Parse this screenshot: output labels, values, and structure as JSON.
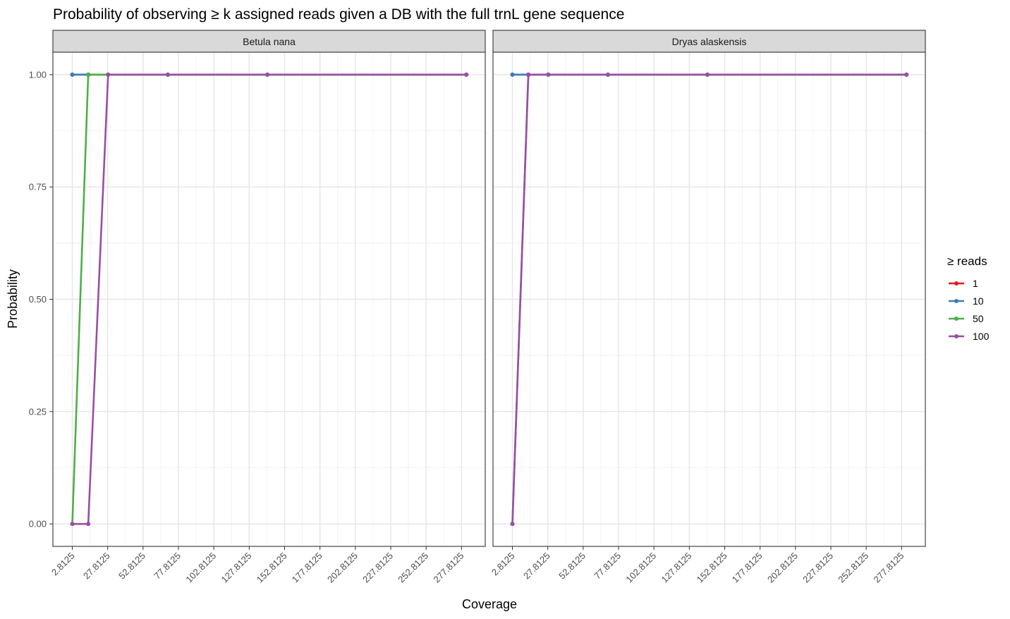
{
  "chart_data": {
    "type": "line",
    "title": "Probability of observing ≥ k assigned reads given a DB with the full trnL gene sequence",
    "xlabel": "Coverage",
    "ylabel": "Probability",
    "x_ticks": [
      "2.8125",
      "27.8125",
      "52.8125",
      "77.8125",
      "102.8125",
      "127.8125",
      "152.8125",
      "177.8125",
      "202.8125",
      "227.8125",
      "252.8125",
      "277.8125"
    ],
    "x_tick_values": [
      2.8125,
      27.8125,
      52.8125,
      77.8125,
      102.8125,
      127.8125,
      152.8125,
      177.8125,
      202.8125,
      227.8125,
      252.8125,
      277.8125
    ],
    "xlim": [
      -10.9,
      294.6
    ],
    "y_ticks": [
      "0.00",
      "0.25",
      "0.50",
      "0.75",
      "1.00"
    ],
    "y_tick_values": [
      0,
      0.25,
      0.5,
      0.75,
      1
    ],
    "ylim": [
      -0.05,
      1.05
    ],
    "grid": true,
    "legend": {
      "title": "≥ reads",
      "position": "right",
      "entries": [
        {
          "label": "1",
          "color": "#E41A1C"
        },
        {
          "label": "10",
          "color": "#377EB8"
        },
        {
          "label": "50",
          "color": "#4DAF4A"
        },
        {
          "label": "100",
          "color": "#984EA3"
        }
      ]
    },
    "panels": [
      {
        "name": "Betula nana",
        "series": [
          {
            "name": "1",
            "color": "#E41A1C",
            "x": [
              2.8125,
              14.0625,
              28.125,
              70.3125,
              140.625,
              281.25
            ],
            "y": [
              1,
              1,
              1,
              1,
              1,
              1
            ]
          },
          {
            "name": "10",
            "color": "#377EB8",
            "x": [
              2.8125,
              14.0625,
              28.125,
              70.3125,
              140.625,
              281.25
            ],
            "y": [
              1,
              1,
              1,
              1,
              1,
              1
            ]
          },
          {
            "name": "50",
            "color": "#4DAF4A",
            "x": [
              2.8125,
              14.0625,
              28.125,
              70.3125,
              140.625,
              281.25
            ],
            "y": [
              0,
              1,
              1,
              1,
              1,
              1
            ]
          },
          {
            "name": "100",
            "color": "#984EA3",
            "x": [
              2.8125,
              14.0625,
              28.125,
              70.3125,
              140.625,
              281.25
            ],
            "y": [
              0,
              0,
              1,
              1,
              1,
              1
            ]
          }
        ]
      },
      {
        "name": "Dryas alaskensis",
        "series": [
          {
            "name": "1",
            "color": "#E41A1C",
            "x": [
              2.8125,
              14.0625,
              28.125,
              70.3125,
              140.625,
              281.25
            ],
            "y": [
              1,
              1,
              1,
              1,
              1,
              1
            ]
          },
          {
            "name": "10",
            "color": "#377EB8",
            "x": [
              2.8125,
              14.0625,
              28.125,
              70.3125,
              140.625,
              281.25
            ],
            "y": [
              1,
              1,
              1,
              1,
              1,
              1
            ]
          },
          {
            "name": "50",
            "color": "#4DAF4A",
            "x": [
              2.8125,
              14.0625,
              28.125,
              70.3125,
              140.625,
              281.25
            ],
            "y": [
              0,
              1,
              1,
              1,
              1,
              1
            ]
          },
          {
            "name": "100",
            "color": "#984EA3",
            "x": [
              2.8125,
              14.0625,
              28.125,
              70.3125,
              140.625,
              281.25
            ],
            "y": [
              0,
              1,
              1,
              1,
              1,
              1
            ]
          }
        ]
      }
    ]
  }
}
